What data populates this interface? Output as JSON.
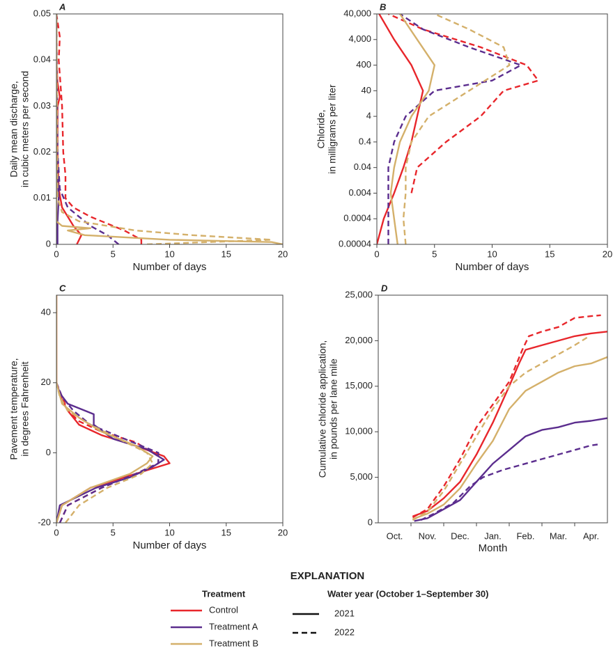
{
  "explanation": {
    "title": "EXPLANATION",
    "treatment_title": "Treatment",
    "treatments": [
      {
        "name": "Control",
        "color": "#e8262b"
      },
      {
        "name": "Treatment A",
        "color": "#5b2d8e"
      },
      {
        "name": "Treatment B",
        "color": "#d4b06a"
      }
    ],
    "year_title": "Water year (October 1–September 30)",
    "years": [
      {
        "name": "2021",
        "dash": "solid"
      },
      {
        "name": "2022",
        "dash": "dashed"
      }
    ]
  },
  "chart_data": [
    {
      "type": "line",
      "panel": "A",
      "xlabel": "Number of days",
      "ylabel": [
        "Daily mean discharge,",
        "in cubic meters per second"
      ],
      "xlim": [
        0,
        20
      ],
      "xticks": [
        0,
        5,
        10,
        15,
        20
      ],
      "ylim": [
        0,
        0.05
      ],
      "yticks": [
        0,
        0.01,
        0.02,
        0.03,
        0.04,
        0.05
      ],
      "series": [
        {
          "treatment": "Control",
          "year": "2021",
          "y": [
            0,
            0.002,
            0.004,
            0.006,
            0.008,
            0.012,
            0.02,
            0.03,
            0.032,
            0.035,
            0.04,
            0.05
          ],
          "x": [
            1.8,
            2.2,
            1.5,
            1,
            0.5,
            0.2,
            0.1,
            0.1,
            0.3,
            0.1,
            0,
            0
          ]
        },
        {
          "treatment": "Control",
          "year": "2022",
          "y": [
            0,
            0.001,
            0.003,
            0.006,
            0.008,
            0.01,
            0.015,
            0.02,
            0.03,
            0.04,
            0.045,
            0.05
          ],
          "x": [
            7.5,
            7.5,
            6,
            3,
            1.5,
            0.8,
            0.8,
            0.6,
            0.5,
            0.2,
            0.3,
            0
          ]
        },
        {
          "treatment": "Treatment A",
          "year": "2021",
          "y": [
            0,
            0.005,
            0.01,
            0.02,
            0.05
          ],
          "x": [
            0.1,
            0.1,
            0.2,
            0,
            0
          ]
        },
        {
          "treatment": "Treatment A",
          "year": "2022",
          "y": [
            0,
            0.002,
            0.004,
            0.006,
            0.008,
            0.012,
            0.02,
            0.05
          ],
          "x": [
            5.5,
            4.5,
            3,
            2,
            1,
            0.3,
            0.1,
            0
          ]
        },
        {
          "treatment": "Treatment B",
          "year": "2021",
          "y": [
            0,
            0.0005,
            0.001,
            0.002,
            0.003,
            0.0035,
            0.004,
            0.005,
            0.05
          ],
          "x": [
            20,
            19,
            10,
            2.5,
            1,
            3,
            0.5,
            0,
            0
          ]
        },
        {
          "treatment": "Treatment B",
          "year": "2022",
          "y": [
            0,
            0.001,
            0.002,
            0.003,
            0.005,
            0.007,
            0.01,
            0.05
          ],
          "x": [
            8,
            19,
            12,
            7,
            2,
            0.5,
            0.1,
            0
          ]
        }
      ]
    },
    {
      "type": "line",
      "panel": "B",
      "xlabel": "Number of days",
      "ylabel": [
        "Chloride,",
        "in milligrams per liter"
      ],
      "yscale": "log",
      "xlim": [
        0,
        20
      ],
      "xticks": [
        0,
        5,
        10,
        15,
        20
      ],
      "ylim": [
        4e-05,
        40000
      ],
      "yticks": [
        4e-05,
        0.0004,
        0.004,
        0.04,
        0.4,
        4,
        40,
        400,
        {
          "value": 4000,
          "label": "4,000"
        },
        {
          "value": 40000,
          "label": "40,000"
        }
      ],
      "series": [
        {
          "treatment": "Control",
          "year": "2021",
          "y": [
            4e-05,
            0.0004,
            0.004,
            0.04,
            0.4,
            4,
            40,
            400,
            4000,
            40000
          ],
          "x": [
            0,
            0.6,
            1.5,
            2.3,
            3,
            3.5,
            4,
            3,
            1.5,
            0.2
          ]
        },
        {
          "treatment": "Control",
          "year": "2022",
          "y": [
            0.004,
            0.04,
            0.4,
            4,
            40,
            100,
            400,
            2000,
            10000,
            40000
          ],
          "x": [
            3,
            3.5,
            6,
            9,
            11,
            14,
            13,
            9,
            4,
            1
          ]
        },
        {
          "treatment": "Treatment A",
          "year": "2022",
          "y": [
            4e-05,
            0.0004,
            0.004,
            0.04,
            0.4,
            4,
            40,
            100,
            400,
            2000,
            10000,
            40000
          ],
          "x": [
            1,
            1,
            1,
            1,
            1.5,
            2.5,
            5,
            10,
            12.5,
            8,
            4,
            2
          ]
        },
        {
          "treatment": "Treatment B",
          "year": "2021",
          "y": [
            4e-05,
            0.0004,
            0.004,
            0.04,
            0.4,
            4,
            40,
            400,
            4000,
            40000
          ],
          "x": [
            1.8,
            1.5,
            1.2,
            1.5,
            2,
            3,
            4.5,
            5,
            3.5,
            2
          ]
        },
        {
          "treatment": "Treatment B",
          "year": "2022",
          "y": [
            4e-05,
            0.0004,
            0.004,
            0.04,
            0.4,
            4,
            40,
            400,
            2000,
            10000,
            40000
          ],
          "x": [
            2.5,
            2.3,
            2.5,
            2.5,
            3,
            4.5,
            8,
            11.5,
            11,
            8,
            5
          ]
        }
      ]
    },
    {
      "type": "line",
      "panel": "C",
      "xlabel": "Number of days",
      "ylabel": [
        "Pavement temperature,",
        "in degrees Fahrenheit"
      ],
      "xlim": [
        0,
        20
      ],
      "xticks": [
        0,
        5,
        10,
        15,
        20
      ],
      "ylim": [
        -20,
        45
      ],
      "yticks": [
        -20,
        0,
        20,
        40
      ],
      "series": [
        {
          "treatment": "Control",
          "year": "2021",
          "y": [
            -20,
            -15,
            -10,
            -7,
            -5,
            -3,
            -1,
            2,
            5,
            8,
            12,
            15,
            20,
            45
          ],
          "x": [
            0,
            0.5,
            3,
            6,
            8,
            10,
            9.5,
            7,
            4,
            2,
            1,
            0.5,
            0,
            0
          ]
        },
        {
          "treatment": "Control",
          "year": "2022",
          "y": [
            -20,
            -15,
            -10,
            -6,
            -3,
            -1,
            3,
            6,
            9,
            12,
            16,
            20
          ],
          "x": [
            0.3,
            1,
            4,
            7,
            9,
            9,
            7,
            4,
            2,
            1,
            0.5,
            0
          ]
        },
        {
          "treatment": "Treatment A",
          "year": "2021",
          "y": [
            -20,
            -15,
            -10,
            -7,
            -4,
            -2,
            1,
            4,
            8,
            11,
            14,
            17,
            20
          ],
          "x": [
            0,
            0.3,
            3.5,
            6.5,
            8.5,
            9.5,
            8,
            5,
            3.3,
            3.3,
            1,
            0.3,
            0
          ]
        },
        {
          "treatment": "Treatment A",
          "year": "2022",
          "y": [
            -20,
            -15,
            -10,
            -6,
            -3,
            0,
            4,
            8,
            12,
            16,
            20
          ],
          "x": [
            0.3,
            1,
            4,
            7,
            9,
            9,
            6,
            3,
            1.5,
            0.5,
            0
          ]
        },
        {
          "treatment": "Treatment B",
          "year": "2021",
          "y": [
            -20,
            -15,
            -10,
            -6,
            -3,
            -1,
            2,
            6,
            10,
            14,
            20,
            45
          ],
          "x": [
            0,
            0.5,
            3,
            6.5,
            8,
            8.5,
            7,
            4,
            2,
            0.5,
            0,
            0
          ]
        },
        {
          "treatment": "Treatment B",
          "year": "2022",
          "y": [
            -20,
            -15,
            -10,
            -6,
            -3,
            0,
            4,
            8,
            12,
            16,
            20
          ],
          "x": [
            0.8,
            2,
            4.5,
            7.5,
            8.5,
            8,
            5.5,
            3,
            1,
            0.3,
            0
          ]
        }
      ]
    },
    {
      "type": "line",
      "panel": "D",
      "xlabel": "Month",
      "ylabel": [
        "Cumulative chloride application,",
        "in pounds per lane mile"
      ],
      "categories": [
        "Oct.",
        "Nov.",
        "Dec.",
        "Jan.",
        "Feb.",
        "Mar.",
        "Apr."
      ],
      "xlim": [
        0,
        7
      ],
      "ylim": [
        0,
        25000
      ],
      "yticks": [
        0,
        {
          "value": 5000,
          "label": "5,000"
        },
        {
          "value": 10000,
          "label": "10,000"
        },
        {
          "value": 15000,
          "label": "15,000"
        },
        {
          "value": 20000,
          "label": "20,000"
        },
        {
          "value": 25000,
          "label": "25,000"
        }
      ],
      "series": [
        {
          "treatment": "Control",
          "year": "2021",
          "x": [
            1.05,
            1.5,
            2,
            2.5,
            3,
            3.5,
            4,
            4.3,
            4.5,
            5,
            5.5,
            6,
            6.5,
            7
          ],
          "y": [
            700,
            1300,
            2700,
            4500,
            7500,
            11000,
            15000,
            17500,
            19000,
            19500,
            20000,
            20500,
            20800,
            21000
          ]
        },
        {
          "treatment": "Control",
          "year": "2022",
          "x": [
            1.05,
            1.5,
            2,
            2.5,
            3,
            3.5,
            4,
            4.4,
            4.6,
            5,
            5.5,
            6,
            6.5,
            6.8
          ],
          "y": [
            600,
            1500,
            4000,
            7000,
            10500,
            13000,
            15500,
            19000,
            20500,
            21000,
            21500,
            22500,
            22700,
            22800
          ]
        },
        {
          "treatment": "Treatment A",
          "year": "2021",
          "x": [
            1.1,
            1.5,
            2,
            2.5,
            3,
            3.5,
            4,
            4.5,
            5,
            5.5,
            6,
            6.5,
            7
          ],
          "y": [
            200,
            500,
            1500,
            2500,
            4500,
            6500,
            8000,
            9500,
            10200,
            10500,
            11000,
            11200,
            11500
          ]
        },
        {
          "treatment": "Treatment A",
          "year": "2022",
          "x": [
            1.3,
            1.7,
            2.3,
            2.8,
            3.2,
            3.8,
            4.3,
            5,
            5.5,
            6,
            6.5,
            6.7
          ],
          "y": [
            300,
            1000,
            2200,
            4000,
            5000,
            5800,
            6300,
            7000,
            7500,
            8000,
            8500,
            8600
          ]
        },
        {
          "treatment": "Treatment B",
          "year": "2021",
          "x": [
            1.05,
            1.5,
            2,
            2.5,
            3,
            3.5,
            4,
            4.5,
            5,
            5.5,
            6,
            6.5,
            7
          ],
          "y": [
            400,
            1000,
            2000,
            3800,
            6500,
            9000,
            12500,
            14500,
            15500,
            16500,
            17200,
            17500,
            18200
          ]
        },
        {
          "treatment": "Treatment B",
          "year": "2022",
          "x": [
            1.05,
            1.5,
            2,
            2.5,
            3,
            3.5,
            4,
            4.5,
            5,
            5.5,
            6,
            6.4
          ],
          "y": [
            300,
            1200,
            3500,
            6500,
            9500,
            12500,
            15000,
            16500,
            17500,
            18500,
            19500,
            20400
          ]
        }
      ]
    }
  ]
}
